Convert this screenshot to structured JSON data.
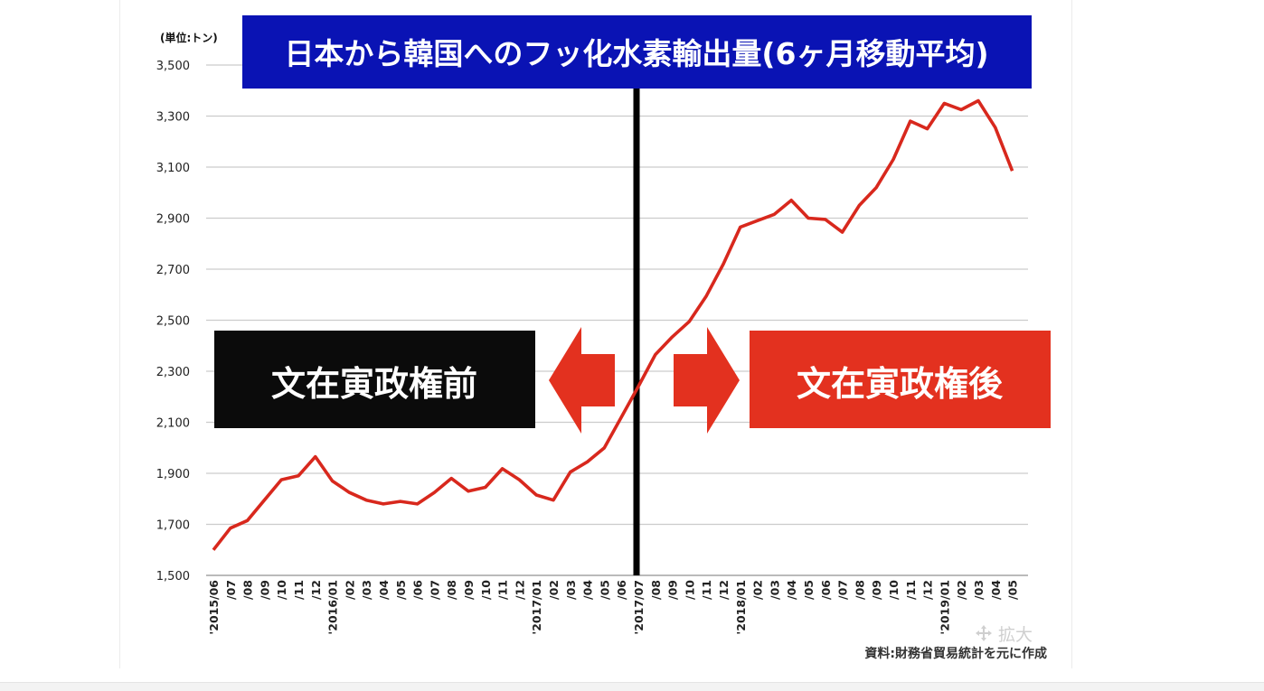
{
  "chart_data": {
    "type": "line",
    "title": "日本から韓国へのフッ化水素輸出量(6ヶ月移動平均)",
    "unit_label": "(単位:トン)",
    "source": "資料:財務省貿易統計を元に作成",
    "ylim": [
      1500,
      3500
    ],
    "yticks": [
      "1,500",
      "1,700",
      "1,900",
      "2,100",
      "2,300",
      "2,500",
      "2,700",
      "2,900",
      "3,100",
      "3,300",
      "3,500"
    ],
    "grid": true,
    "categories": [
      "'2015/06",
      "/07",
      "/08",
      "/09",
      "/10",
      "/11",
      "/12",
      "'2016/01",
      "/02",
      "/03",
      "/04",
      "/05",
      "/06",
      "/07",
      "/08",
      "/09",
      "/10",
      "/11",
      "/12",
      "'2017/01",
      "/02",
      "/03",
      "/04",
      "/05",
      "/06",
      "'2017/07",
      "/08",
      "/09",
      "/10",
      "/11",
      "/12",
      "'2018/01",
      "/02",
      "/03",
      "/04",
      "/05",
      "/06",
      "/07",
      "/08",
      "/09",
      "/10",
      "/11",
      "/12",
      "'2019/01",
      "/02",
      "/03",
      "/04",
      "/05"
    ],
    "series": [
      {
        "color": "#d8281d",
        "values": [
          1600,
          1685,
          1715,
          1795,
          1875,
          1890,
          1965,
          1870,
          1825,
          1795,
          1780,
          1790,
          1780,
          1825,
          1880,
          1830,
          1845,
          1918,
          1875,
          1815,
          1795,
          1905,
          1945,
          2000,
          2120,
          2240,
          2365,
          2435,
          2495,
          2595,
          2720,
          2865,
          2890,
          2915,
          2970,
          2900,
          2895,
          2845,
          2950,
          3020,
          3130,
          3280,
          3250,
          3350,
          3325,
          3360,
          3255,
          3085
        ]
      }
    ],
    "divider_after": "'2017/07",
    "labels": {
      "before": "文在寅政権前",
      "after": "文在寅政権後"
    }
  },
  "colors": {
    "title_bg": "#0a13b4",
    "line": "#d8281d",
    "before_box": "#0b0b0b",
    "after_box": "#e3311f",
    "arrow": "#e3311f",
    "divider": "#000000",
    "grid": "#cccccc"
  },
  "zoom_control": {
    "label": "拡大",
    "icon": "move-arrows-icon"
  }
}
